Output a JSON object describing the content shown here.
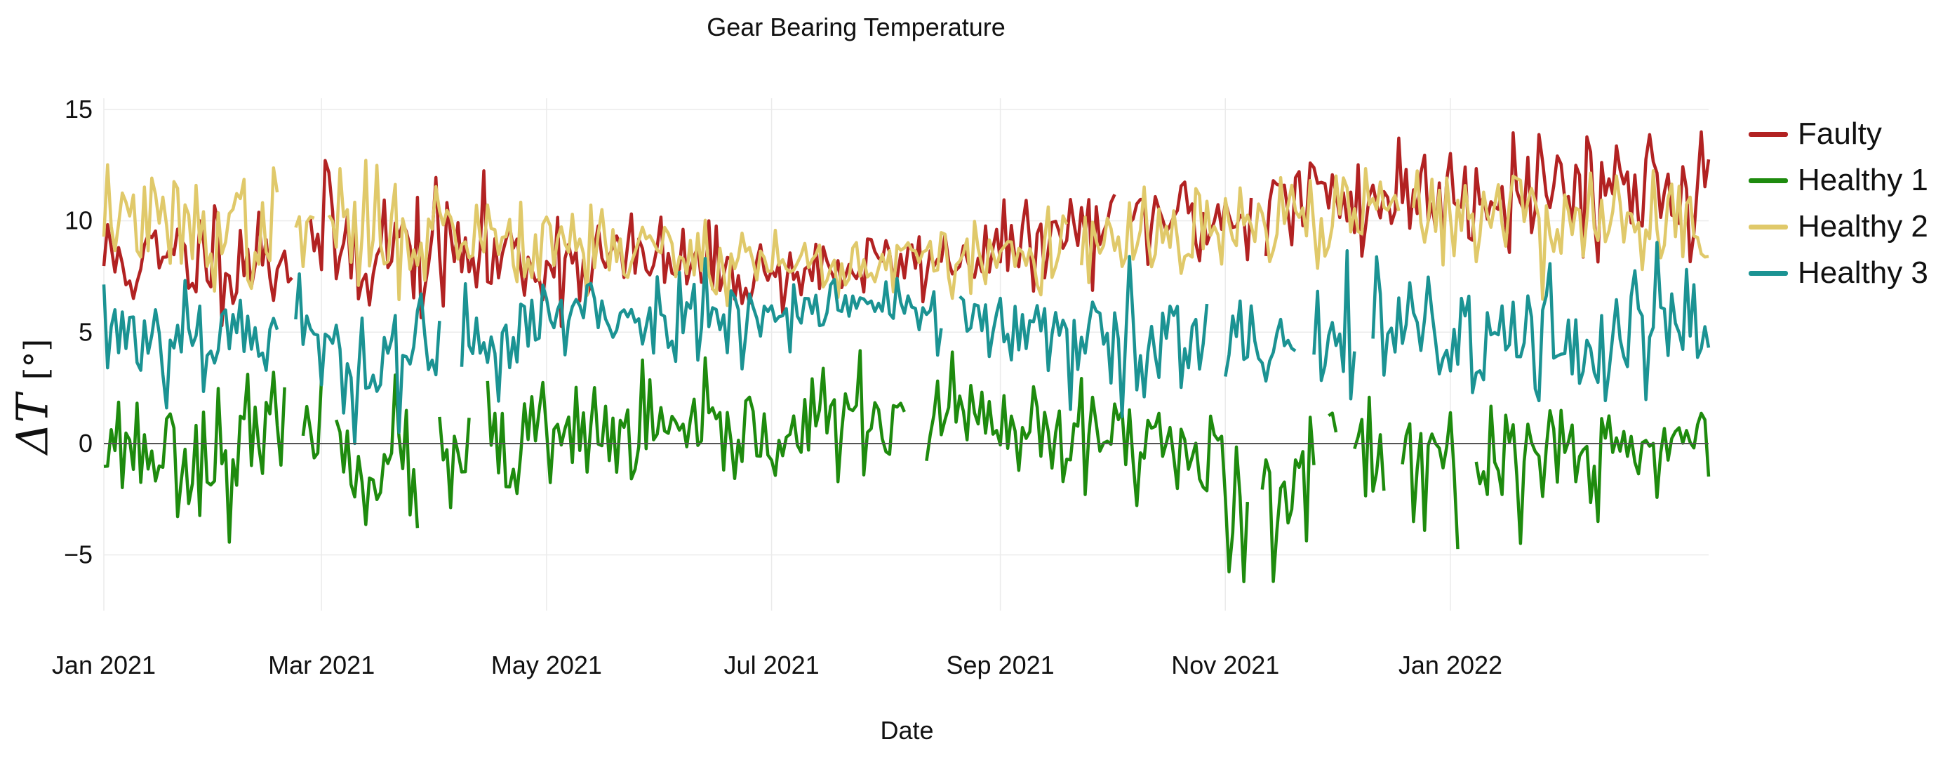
{
  "chart_data": {
    "type": "line",
    "title": "Gear Bearing Temperature",
    "xlabel": "Date",
    "ylabel": "ΔT [°]",
    "ylabel_parts": {
      "symbol": "ΔT",
      "unit": "[°]"
    },
    "x_start": "2021-01-01",
    "x_end": "2022-03-12",
    "xlim_days": [
      0,
      435
    ],
    "ylim": [
      -7.5,
      15.5
    ],
    "y_ticks": [
      -5,
      0,
      5,
      10,
      15
    ],
    "y_tick_labels": [
      "−5",
      "0",
      "5",
      "10",
      "15"
    ],
    "x_ticks": [
      {
        "label": "Jan 2021",
        "day": 0
      },
      {
        "label": "Mar 2021",
        "day": 59
      },
      {
        "label": "May 2021",
        "day": 120
      },
      {
        "label": "Jul 2021",
        "day": 181
      },
      {
        "label": "Sep 2021",
        "day": 243
      },
      {
        "label": "Nov 2021",
        "day": 304
      },
      {
        "label": "Jan 2022",
        "day": 365
      }
    ],
    "zero_line": 0,
    "grid": true,
    "legend_position": "right",
    "series": [
      {
        "name": "Faulty",
        "color": "#b22222",
        "anchors": [
          [
            0,
            8.3
          ],
          [
            15,
            8.0
          ],
          [
            30,
            8.6
          ],
          [
            45,
            8.4
          ],
          [
            60,
            9.0
          ],
          [
            75,
            8.8
          ],
          [
            90,
            8.6
          ],
          [
            105,
            8.4
          ],
          [
            120,
            8.2
          ],
          [
            135,
            8.3
          ],
          [
            150,
            8.2
          ],
          [
            165,
            7.8
          ],
          [
            180,
            7.6
          ],
          [
            195,
            7.8
          ],
          [
            210,
            8.0
          ],
          [
            225,
            8.2
          ],
          [
            240,
            8.6
          ],
          [
            255,
            9.0
          ],
          [
            270,
            9.8
          ],
          [
            285,
            10.2
          ],
          [
            300,
            10.0
          ],
          [
            315,
            10.6
          ],
          [
            330,
            11.0
          ],
          [
            345,
            11.0
          ],
          [
            360,
            11.3
          ],
          [
            375,
            11.5
          ],
          [
            390,
            11.6
          ],
          [
            405,
            11.6
          ],
          [
            420,
            11.8
          ],
          [
            435,
            11.6
          ]
        ],
        "noise": [
          1.2,
          1.3,
          1.3,
          1.4,
          1.6,
          1.5,
          1.4,
          1.3,
          1.2,
          1.1,
          1.0,
          0.9,
          0.8,
          0.8,
          0.8,
          0.8,
          0.9,
          1.0,
          1.0,
          1.1,
          1.2,
          1.3,
          1.4,
          1.4,
          1.4,
          1.4,
          1.4,
          1.4,
          1.3,
          1.3
        ],
        "gaps": [
          [
            52,
            55
          ],
          [
            275,
            277
          ],
          [
            312,
            314
          ]
        ],
        "seed": 11
      },
      {
        "name": "Healthy 1",
        "color": "#1e8b0e",
        "anchors": [
          [
            0,
            0.3
          ],
          [
            15,
            -0.4
          ],
          [
            30,
            -0.5
          ],
          [
            45,
            0.0
          ],
          [
            60,
            -0.3
          ],
          [
            75,
            -0.9
          ],
          [
            90,
            -1.0
          ],
          [
            105,
            -0.7
          ],
          [
            120,
            0.0
          ],
          [
            135,
            0.4
          ],
          [
            150,
            0.5
          ],
          [
            165,
            0.1
          ],
          [
            180,
            0.5
          ],
          [
            195,
            0.9
          ],
          [
            210,
            1.2
          ],
          [
            225,
            1.4
          ],
          [
            240,
            0.8
          ],
          [
            255,
            -0.3
          ],
          [
            270,
            0.3
          ],
          [
            285,
            0.3
          ],
          [
            300,
            -1.2
          ],
          [
            315,
            -1.5
          ],
          [
            330,
            -0.8
          ],
          [
            345,
            -0.3
          ],
          [
            360,
            -0.4
          ],
          [
            375,
            -0.8
          ],
          [
            390,
            -0.6
          ],
          [
            405,
            -0.6
          ],
          [
            420,
            -0.2
          ],
          [
            435,
            0.5
          ]
        ],
        "noise": [
          1.2,
          1.3,
          1.5,
          1.4,
          1.4,
          1.6,
          1.7,
          1.5,
          1.4,
          1.3,
          1.2,
          1.2,
          1.2,
          1.2,
          1.1,
          1.2,
          1.2,
          1.6,
          1.5,
          1.4,
          1.8,
          1.9,
          1.7,
          1.4,
          1.4,
          1.5,
          1.4,
          1.4,
          1.4,
          1.5
        ],
        "gaps": [
          [
            50,
            53
          ],
          [
            60,
            62
          ],
          [
            86,
            90
          ],
          [
            100,
            103
          ],
          [
            218,
            222
          ],
          [
            311,
            313
          ],
          [
            329,
            331
          ],
          [
            335,
            338
          ],
          [
            348,
            351
          ],
          [
            368,
            371
          ]
        ],
        "seed": 23
      },
      {
        "name": "Healthy 2",
        "color": "#e0c96a",
        "anchors": [
          [
            0,
            10.5
          ],
          [
            15,
            9.7
          ],
          [
            30,
            9.6
          ],
          [
            45,
            9.6
          ],
          [
            60,
            9.7
          ],
          [
            75,
            9.5
          ],
          [
            90,
            9.6
          ],
          [
            105,
            9.4
          ],
          [
            120,
            9.3
          ],
          [
            135,
            9.0
          ],
          [
            150,
            8.6
          ],
          [
            165,
            8.4
          ],
          [
            180,
            8.2
          ],
          [
            195,
            8.0
          ],
          [
            210,
            8.1
          ],
          [
            225,
            8.2
          ],
          [
            240,
            8.3
          ],
          [
            255,
            8.6
          ],
          [
            270,
            8.8
          ],
          [
            285,
            9.2
          ],
          [
            300,
            9.4
          ],
          [
            315,
            9.8
          ],
          [
            330,
            10.2
          ],
          [
            345,
            10.4
          ],
          [
            360,
            10.5
          ],
          [
            375,
            10.3
          ],
          [
            390,
            10.2
          ],
          [
            405,
            10.0
          ],
          [
            420,
            10.0
          ],
          [
            435,
            10.1
          ]
        ],
        "noise": [
          1.1,
          1.2,
          1.3,
          1.3,
          1.3,
          1.3,
          1.2,
          1.2,
          1.1,
          1.0,
          1.0,
          0.9,
          0.8,
          0.8,
          0.8,
          0.8,
          0.8,
          0.9,
          1.0,
          1.0,
          1.0,
          1.1,
          1.1,
          1.1,
          1.2,
          1.2,
          1.2,
          1.2,
          1.2,
          1.2
        ],
        "gaps": [
          [
            48,
            51
          ],
          [
            58,
            60
          ],
          [
            262,
            264
          ],
          [
            352,
            354
          ]
        ],
        "seed": 37
      },
      {
        "name": "Healthy 3",
        "color": "#1b9393",
        "anchors": [
          [
            0,
            5.3
          ],
          [
            15,
            4.9
          ],
          [
            30,
            5.2
          ],
          [
            45,
            5.0
          ],
          [
            60,
            4.2
          ],
          [
            75,
            3.8
          ],
          [
            90,
            3.8
          ],
          [
            105,
            4.8
          ],
          [
            120,
            5.5
          ],
          [
            135,
            5.6
          ],
          [
            150,
            5.8
          ],
          [
            165,
            5.8
          ],
          [
            180,
            6.0
          ],
          [
            195,
            6.3
          ],
          [
            210,
            6.3
          ],
          [
            225,
            6.0
          ],
          [
            240,
            5.3
          ],
          [
            255,
            4.6
          ],
          [
            270,
            4.4
          ],
          [
            285,
            4.2
          ],
          [
            300,
            4.1
          ],
          [
            315,
            4.3
          ],
          [
            330,
            4.6
          ],
          [
            345,
            4.8
          ],
          [
            360,
            4.8
          ],
          [
            375,
            4.6
          ],
          [
            390,
            4.8
          ],
          [
            405,
            4.8
          ],
          [
            420,
            5.1
          ],
          [
            435,
            5.2
          ]
        ],
        "noise": [
          1.3,
          1.4,
          1.3,
          1.4,
          1.5,
          1.5,
          1.4,
          1.3,
          1.1,
          1.0,
          1.0,
          0.9,
          0.8,
          0.8,
          0.8,
          0.9,
          1.1,
          1.3,
          1.5,
          1.6,
          1.7,
          1.6,
          1.6,
          1.6,
          1.6,
          1.6,
          1.6,
          1.6,
          1.6,
          1.7
        ],
        "gaps": [
          [
            48,
            51
          ],
          [
            92,
            96
          ],
          [
            228,
            231
          ],
          [
            300,
            303
          ],
          [
            324,
            327
          ],
          [
            340,
            343
          ]
        ],
        "seed": 53
      }
    ]
  }
}
